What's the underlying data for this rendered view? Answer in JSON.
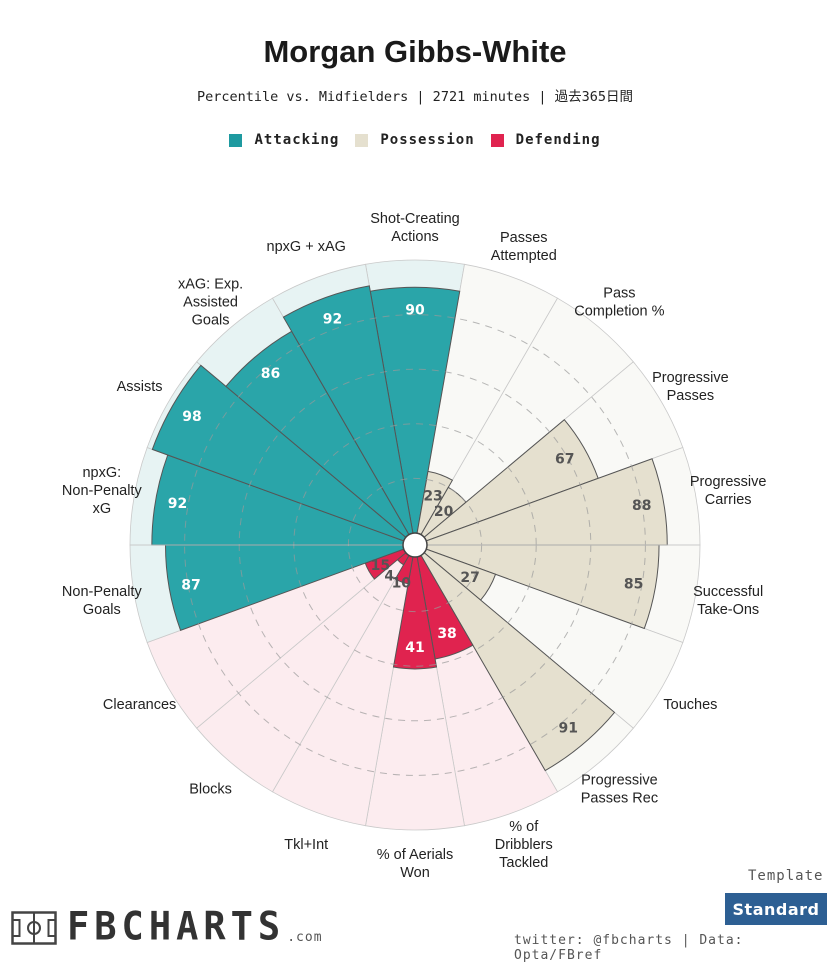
{
  "header": {
    "title": "Morgan Gibbs-White",
    "subtitle": "Percentile vs. Midfielders | 2721 minutes | 過去365日間"
  },
  "legend": [
    {
      "label": "Attacking",
      "color": "#2aa5a9"
    },
    {
      "label": "Possession",
      "color": "#e5e0cf"
    },
    {
      "label": "Defending",
      "color": "#e0234f"
    }
  ],
  "colors": {
    "Attacking": {
      "fill": "#2aa5a9",
      "bg": "#e7f3f3"
    },
    "Possession": {
      "fill": "#e5e0cf",
      "bg": "#f9f9f6"
    },
    "Defending": {
      "fill": "#e0234f",
      "bg": "#fcecef"
    }
  },
  "chart_data": {
    "type": "polar-bar",
    "title": "Morgan Gibbs-White",
    "rmax": 100,
    "grid_rings": [
      20,
      40,
      60,
      80
    ],
    "start_angle_deg": 90,
    "direction": "clockwise",
    "categories": [
      {
        "label": "Shot-Creating Actions",
        "group": "Attacking",
        "value": 90
      },
      {
        "label": "Passes Attempted",
        "group": "Possession",
        "value": 23
      },
      {
        "label": "Pass Completion %",
        "group": "Possession",
        "value": 20
      },
      {
        "label": "Progressive Passes",
        "group": "Possession",
        "value": 67
      },
      {
        "label": "Progressive Carries",
        "group": "Possession",
        "value": 88
      },
      {
        "label": "Successful Take-Ons",
        "group": "Possession",
        "value": 85
      },
      {
        "label": "Touches",
        "group": "Possession",
        "value": 27
      },
      {
        "label": "Progressive Passes Rec",
        "group": "Possession",
        "value": 91
      },
      {
        "label": "% of Dribblers Tackled",
        "group": "Defending",
        "value": 38
      },
      {
        "label": "% of Aerials Won",
        "group": "Defending",
        "value": 41
      },
      {
        "label": "Tkl+Int",
        "group": "Defending",
        "value": 10
      },
      {
        "label": "Blocks",
        "group": "Defending",
        "value": 4
      },
      {
        "label": "Clearances",
        "group": "Defending",
        "value": 15
      },
      {
        "label": "Non-Penalty Goals",
        "group": "Attacking",
        "value": 87
      },
      {
        "label": "npxG: Non-Penalty xG",
        "group": "Attacking",
        "value": 92
      },
      {
        "label": "Assists",
        "group": "Attacking",
        "value": 98
      },
      {
        "label": "xAG: Exp. Assisted Goals",
        "group": "Attacking",
        "value": 86
      },
      {
        "label": "npxG + xAG",
        "group": "Attacking",
        "value": 92
      }
    ]
  },
  "footer": {
    "template_label": "Template",
    "template_value": "Standard",
    "credit": "twitter: @fbcharts | Data: Opta/FBref",
    "logo_text": "FBCHARTS",
    "logo_suffix": ".com"
  }
}
